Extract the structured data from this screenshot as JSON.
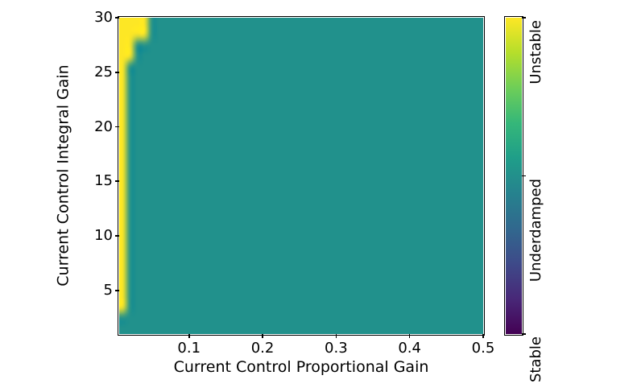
{
  "chart_data": {
    "type": "heatmap",
    "title": "",
    "xlabel": "Current Control Proportional Gain",
    "ylabel": "Current Control Integral Gain",
    "x_range": [
      0.005,
      0.5
    ],
    "y_range": [
      1,
      30
    ],
    "x_ticks": [
      "0.1",
      "0.2",
      "0.3",
      "0.4",
      "0.5"
    ],
    "y_ticks": [
      "5",
      "10",
      "15",
      "20",
      "25",
      "30"
    ],
    "grid": {
      "cols": 50,
      "rows": 29,
      "default_value": 1
    },
    "classes": [
      {
        "value": 0,
        "label": "Stable",
        "color": "#440154"
      },
      {
        "value": 1,
        "label": "Underdamped",
        "color": "#21918c"
      },
      {
        "value": 2,
        "label": "Unstable",
        "color": "#fde725"
      }
    ],
    "unstable_regions": [
      {
        "x_range": [
          0.005,
          0.018
        ],
        "y_range": [
          3,
          30
        ]
      },
      {
        "x_range": [
          0.005,
          0.025
        ],
        "y_range": [
          26,
          30
        ]
      },
      {
        "x_range": [
          0.005,
          0.045
        ],
        "y_range": [
          28,
          30
        ]
      }
    ],
    "colorbar": {
      "value_range": [
        0,
        2
      ],
      "tick_values": [
        0,
        1,
        2
      ],
      "tick_labels": [
        "Stable",
        "Underdamped",
        "Unstable"
      ],
      "viridis_stops": [
        "#440154",
        "#482878",
        "#3e4a89",
        "#31688e",
        "#26828e",
        "#1f9e89",
        "#35b779",
        "#6ece58",
        "#b5de2b",
        "#fde725"
      ]
    },
    "axes": {
      "spine_color": "#000000",
      "text_color": "#000000",
      "background": "#ffffff"
    }
  }
}
